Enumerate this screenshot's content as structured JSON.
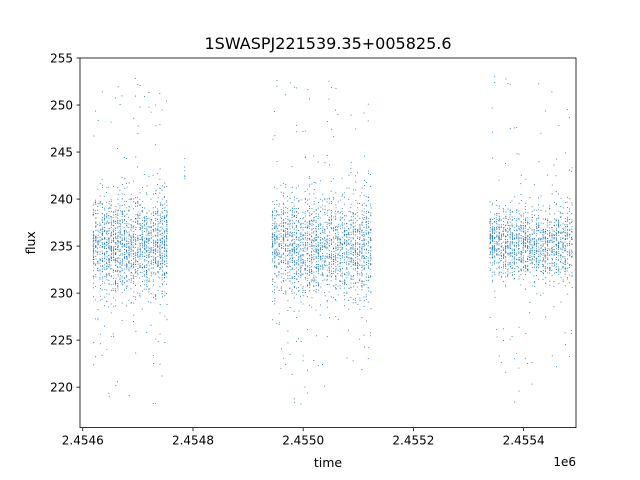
{
  "chart_data": {
    "type": "scatter",
    "title": "1SWASPJ221539.35+005825.6",
    "xlabel": "time",
    "ylabel": "flux",
    "x_multiplier_label": "1e6",
    "x_scale_factor": 1000000,
    "xlim": [
      2454595,
      2455495
    ],
    "ylim": [
      215.7,
      255
    ],
    "x_ticks": [
      2454600,
      2454800,
      2455000,
      2455200,
      2455400
    ],
    "x_tick_labels": [
      "2.4546",
      "2.4548",
      "2.4550",
      "2.4552",
      "2.4554"
    ],
    "y_ticks": [
      220,
      225,
      230,
      235,
      240,
      245,
      250,
      255
    ],
    "y_tick_labels": [
      "220",
      "225",
      "230",
      "235",
      "240",
      "245",
      "250",
      "255"
    ],
    "grid": false,
    "legend": false,
    "series": [
      {
        "color": "#1f77b4",
        "segments": [
          {
            "x_start": 2454618,
            "x_end": 2454755,
            "y_center": 235.2,
            "y_spread": 2.6,
            "n_points": 1700,
            "outlier_min": 218.2,
            "outlier_max": 253.3
          },
          {
            "x_start": 2454784,
            "x_end": 2454786,
            "y_center": 243.2,
            "y_spread": 1.2,
            "n_points": 6,
            "outlier_min": 242.2,
            "outlier_max": 250.8
          },
          {
            "x_start": 2454943,
            "x_end": 2455125,
            "y_center": 235.0,
            "y_spread": 2.7,
            "n_points": 2000,
            "outlier_min": 217.6,
            "outlier_max": 253.0
          },
          {
            "x_start": 2455338,
            "x_end": 2455490,
            "y_center": 235.3,
            "y_spread": 1.9,
            "n_points": 1500,
            "outlier_min": 217.8,
            "outlier_max": 253.4
          }
        ]
      }
    ]
  }
}
